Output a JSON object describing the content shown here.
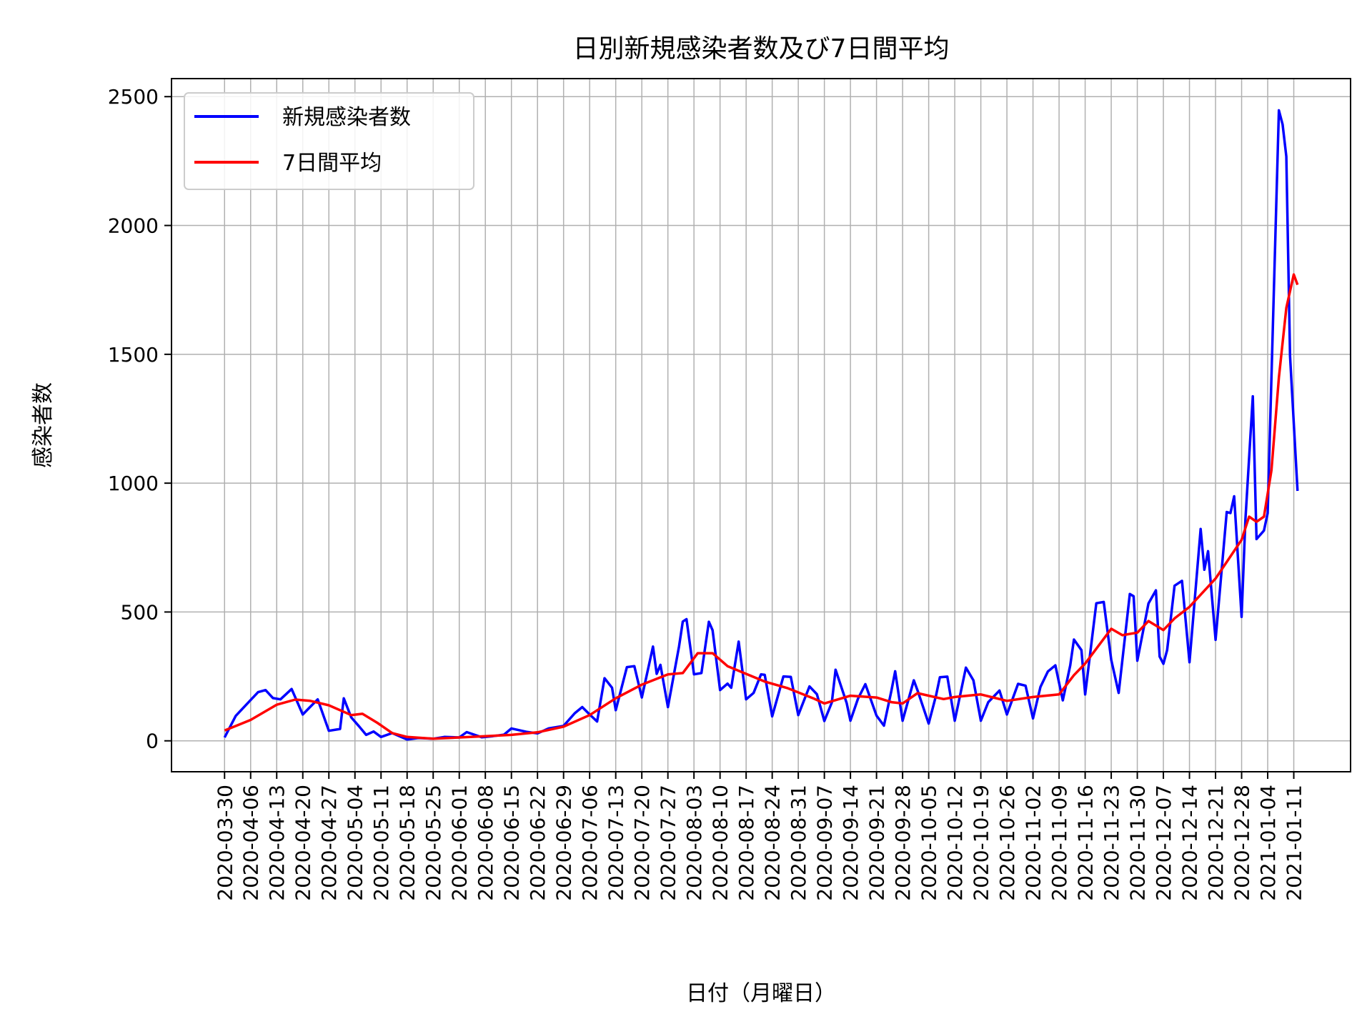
{
  "chart_data": {
    "type": "line",
    "title": "日別新規感染者数及び7日間平均",
    "xlabel": "日付（月曜日）",
    "ylabel": "感染者数",
    "ylim": [
      -120,
      2570
    ],
    "yticks": [
      0,
      500,
      1000,
      1500,
      2000,
      2500
    ],
    "grid": true,
    "legend_position": "top-left",
    "x_start": "2020-03-30",
    "x_end": "2021-01-12",
    "xticks": [
      "2020-03-30",
      "2020-04-06",
      "2020-04-13",
      "2020-04-20",
      "2020-04-27",
      "2020-05-04",
      "2020-05-11",
      "2020-05-18",
      "2020-05-25",
      "2020-06-01",
      "2020-06-08",
      "2020-06-15",
      "2020-06-22",
      "2020-06-29",
      "2020-07-06",
      "2020-07-13",
      "2020-07-20",
      "2020-07-27",
      "2020-08-03",
      "2020-08-10",
      "2020-08-17",
      "2020-08-24",
      "2020-08-31",
      "2020-09-07",
      "2020-09-14",
      "2020-09-21",
      "2020-09-28",
      "2020-10-05",
      "2020-10-12",
      "2020-10-19",
      "2020-10-26",
      "2020-11-02",
      "2020-11-09",
      "2020-11-16",
      "2020-11-23",
      "2020-11-30",
      "2020-12-07",
      "2020-12-14",
      "2020-12-21",
      "2020-12-28",
      "2021-01-04",
      "2021-01-11"
    ],
    "series": [
      {
        "name": "新規感染者数",
        "color": "#0000ff",
        "points": [
          [
            "2020-03-30",
            13
          ],
          [
            "2020-04-02",
            97
          ],
          [
            "2020-04-05",
            143
          ],
          [
            "2020-04-08",
            189
          ],
          [
            "2020-04-10",
            197
          ],
          [
            "2020-04-12",
            166
          ],
          [
            "2020-04-14",
            161
          ],
          [
            "2020-04-17",
            201
          ],
          [
            "2020-04-20",
            102
          ],
          [
            "2020-04-22",
            132
          ],
          [
            "2020-04-24",
            161
          ],
          [
            "2020-04-27",
            39
          ],
          [
            "2020-04-30",
            46
          ],
          [
            "2020-05-01",
            165
          ],
          [
            "2020-05-03",
            91
          ],
          [
            "2020-05-05",
            58
          ],
          [
            "2020-05-07",
            23
          ],
          [
            "2020-05-09",
            36
          ],
          [
            "2020-05-11",
            15
          ],
          [
            "2020-05-14",
            30
          ],
          [
            "2020-05-18",
            5
          ],
          [
            "2020-05-21",
            11
          ],
          [
            "2020-05-25",
            8
          ],
          [
            "2020-05-28",
            15
          ],
          [
            "2020-06-01",
            13
          ],
          [
            "2020-06-03",
            34
          ],
          [
            "2020-06-07",
            14
          ],
          [
            "2020-06-10",
            18
          ],
          [
            "2020-06-13",
            24
          ],
          [
            "2020-06-15",
            48
          ],
          [
            "2020-06-19",
            35
          ],
          [
            "2020-06-22",
            29
          ],
          [
            "2020-06-25",
            48
          ],
          [
            "2020-06-29",
            58
          ],
          [
            "2020-07-02",
            107
          ],
          [
            "2020-07-04",
            131
          ],
          [
            "2020-07-06",
            102
          ],
          [
            "2020-07-08",
            75
          ],
          [
            "2020-07-10",
            243
          ],
          [
            "2020-07-12",
            206
          ],
          [
            "2020-07-13",
            119
          ],
          [
            "2020-07-16",
            286
          ],
          [
            "2020-07-18",
            290
          ],
          [
            "2020-07-20",
            168
          ],
          [
            "2020-07-23",
            366
          ],
          [
            "2020-07-24",
            260
          ],
          [
            "2020-07-25",
            295
          ],
          [
            "2020-07-27",
            131
          ],
          [
            "2020-07-30",
            367
          ],
          [
            "2020-07-31",
            463
          ],
          [
            "2020-08-01",
            472
          ],
          [
            "2020-08-03",
            258
          ],
          [
            "2020-08-05",
            263
          ],
          [
            "2020-08-07",
            462
          ],
          [
            "2020-08-08",
            429
          ],
          [
            "2020-08-10",
            197
          ],
          [
            "2020-08-12",
            222
          ],
          [
            "2020-08-13",
            206
          ],
          [
            "2020-08-15",
            385
          ],
          [
            "2020-08-17",
            161
          ],
          [
            "2020-08-19",
            186
          ],
          [
            "2020-08-21",
            258
          ],
          [
            "2020-08-22",
            256
          ],
          [
            "2020-08-24",
            95
          ],
          [
            "2020-08-27",
            250
          ],
          [
            "2020-08-29",
            248
          ],
          [
            "2020-08-31",
            100
          ],
          [
            "2020-09-03",
            211
          ],
          [
            "2020-09-05",
            181
          ],
          [
            "2020-09-07",
            77
          ],
          [
            "2020-09-09",
            149
          ],
          [
            "2020-09-10",
            276
          ],
          [
            "2020-09-13",
            146
          ],
          [
            "2020-09-14",
            78
          ],
          [
            "2020-09-16",
            163
          ],
          [
            "2020-09-18",
            220
          ],
          [
            "2020-09-21",
            98
          ],
          [
            "2020-09-23",
            59
          ],
          [
            "2020-09-25",
            195
          ],
          [
            "2020-09-26",
            270
          ],
          [
            "2020-09-28",
            78
          ],
          [
            "2020-10-01",
            235
          ],
          [
            "2020-10-02",
            196
          ],
          [
            "2020-10-05",
            67
          ],
          [
            "2020-10-07",
            177
          ],
          [
            "2020-10-08",
            247
          ],
          [
            "2020-10-10",
            249
          ],
          [
            "2020-10-12",
            78
          ],
          [
            "2020-10-15",
            284
          ],
          [
            "2020-10-17",
            235
          ],
          [
            "2020-10-19",
            78
          ],
          [
            "2020-10-21",
            150
          ],
          [
            "2020-10-24",
            195
          ],
          [
            "2020-10-26",
            102
          ],
          [
            "2020-10-29",
            221
          ],
          [
            "2020-10-31",
            214
          ],
          [
            "2020-11-02",
            87
          ],
          [
            "2020-11-04",
            209
          ],
          [
            "2020-11-06",
            269
          ],
          [
            "2020-11-08",
            293
          ],
          [
            "2020-11-10",
            157
          ],
          [
            "2020-11-12",
            293
          ],
          [
            "2020-11-13",
            393
          ],
          [
            "2020-11-15",
            352
          ],
          [
            "2020-11-16",
            180
          ],
          [
            "2020-11-19",
            534
          ],
          [
            "2020-11-21",
            539
          ],
          [
            "2020-11-23",
            314
          ],
          [
            "2020-11-25",
            186
          ],
          [
            "2020-11-28",
            570
          ],
          [
            "2020-11-29",
            561
          ],
          [
            "2020-11-30",
            311
          ],
          [
            "2020-12-03",
            533
          ],
          [
            "2020-12-05",
            584
          ],
          [
            "2020-12-06",
            327
          ],
          [
            "2020-12-07",
            299
          ],
          [
            "2020-12-08",
            352
          ],
          [
            "2020-12-10",
            602
          ],
          [
            "2020-12-12",
            621
          ],
          [
            "2020-12-14",
            305
          ],
          [
            "2020-12-17",
            822
          ],
          [
            "2020-12-18",
            664
          ],
          [
            "2020-12-19",
            736
          ],
          [
            "2020-12-21",
            392
          ],
          [
            "2020-12-24",
            888
          ],
          [
            "2020-12-25",
            884
          ],
          [
            "2020-12-26",
            949
          ],
          [
            "2020-12-28",
            481
          ],
          [
            "2020-12-29",
            856
          ],
          [
            "2020-12-31",
            1337
          ],
          [
            "2021-01-01",
            783
          ],
          [
            "2021-01-03",
            816
          ],
          [
            "2021-01-04",
            884
          ],
          [
            "2021-01-07",
            2447
          ],
          [
            "2021-01-08",
            2392
          ],
          [
            "2021-01-09",
            2268
          ],
          [
            "2021-01-10",
            1494
          ],
          [
            "2021-01-12",
            970
          ]
        ]
      },
      {
        "name": "7日間平均",
        "color": "#ff0000",
        "points": [
          [
            "2020-03-30",
            40
          ],
          [
            "2020-04-06",
            81
          ],
          [
            "2020-04-13",
            140
          ],
          [
            "2020-04-18",
            160
          ],
          [
            "2020-04-22",
            155
          ],
          [
            "2020-04-27",
            138
          ],
          [
            "2020-05-03",
            100
          ],
          [
            "2020-05-06",
            105
          ],
          [
            "2020-05-10",
            70
          ],
          [
            "2020-05-14",
            30
          ],
          [
            "2020-05-18",
            15
          ],
          [
            "2020-05-25",
            8
          ],
          [
            "2020-06-01",
            13
          ],
          [
            "2020-06-08",
            18
          ],
          [
            "2020-06-15",
            23
          ],
          [
            "2020-06-22",
            33
          ],
          [
            "2020-06-29",
            55
          ],
          [
            "2020-07-06",
            100
          ],
          [
            "2020-07-13",
            165
          ],
          [
            "2020-07-20",
            218
          ],
          [
            "2020-07-27",
            258
          ],
          [
            "2020-07-31",
            263
          ],
          [
            "2020-08-04",
            340
          ],
          [
            "2020-08-08",
            340
          ],
          [
            "2020-08-12",
            290
          ],
          [
            "2020-08-17",
            260
          ],
          [
            "2020-08-22",
            230
          ],
          [
            "2020-08-28",
            205
          ],
          [
            "2020-09-04",
            165
          ],
          [
            "2020-09-07",
            145
          ],
          [
            "2020-09-14",
            175
          ],
          [
            "2020-09-21",
            168
          ],
          [
            "2020-09-25",
            150
          ],
          [
            "2020-09-28",
            145
          ],
          [
            "2020-10-02",
            185
          ],
          [
            "2020-10-09",
            162
          ],
          [
            "2020-10-12",
            170
          ],
          [
            "2020-10-19",
            180
          ],
          [
            "2020-10-26",
            155
          ],
          [
            "2020-11-02",
            170
          ],
          [
            "2020-11-09",
            180
          ],
          [
            "2020-11-13",
            255
          ],
          [
            "2020-11-16",
            300
          ],
          [
            "2020-11-23",
            435
          ],
          [
            "2020-11-26",
            410
          ],
          [
            "2020-11-30",
            420
          ],
          [
            "2020-12-03",
            465
          ],
          [
            "2020-12-07",
            430
          ],
          [
            "2020-12-10",
            475
          ],
          [
            "2020-12-14",
            520
          ],
          [
            "2020-12-21",
            630
          ],
          [
            "2020-12-28",
            780
          ],
          [
            "2020-12-30",
            870
          ],
          [
            "2021-01-01",
            850
          ],
          [
            "2021-01-03",
            870
          ],
          [
            "2021-01-05",
            1050
          ],
          [
            "2021-01-07",
            1410
          ],
          [
            "2021-01-09",
            1680
          ],
          [
            "2021-01-11",
            1810
          ],
          [
            "2021-01-12",
            1770
          ]
        ]
      }
    ]
  }
}
